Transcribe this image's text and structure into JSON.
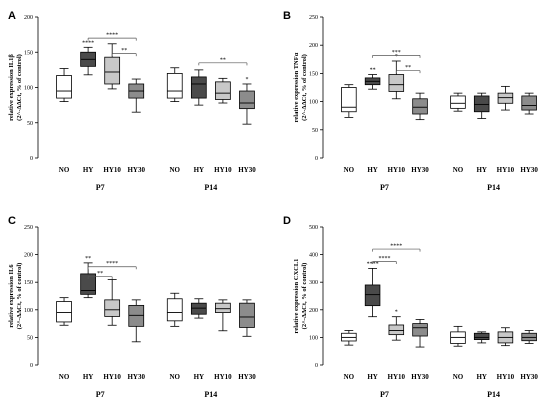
{
  "chart_data": [
    {
      "type": "box",
      "panel_letter": "A",
      "ylabel": "relative expression IL1β",
      "ylabel2": "(2^-ΔΔCt, % of control)",
      "ylim": [
        0,
        200
      ],
      "yticks": [
        0,
        50,
        100,
        150,
        200
      ],
      "categories": [
        "NO",
        "HY",
        "HY10",
        "HY30",
        "NO",
        "HY",
        "HY10",
        "HY30"
      ],
      "groups": [
        "P7",
        "P14"
      ],
      "boxes": [
        {
          "min": 80,
          "q1": 85,
          "median": 95,
          "q3": 117,
          "max": 127,
          "fill": "#ffffff"
        },
        {
          "min": 118,
          "q1": 130,
          "median": 140,
          "q3": 150,
          "max": 157,
          "fill": "#4a4a4a"
        },
        {
          "min": 98,
          "q1": 105,
          "median": 122,
          "q3": 143,
          "max": 162,
          "fill": "#c8c8c8"
        },
        {
          "min": 65,
          "q1": 85,
          "median": 95,
          "q3": 105,
          "max": 112,
          "fill": "#8c8c8c"
        },
        {
          "min": 80,
          "q1": 85,
          "median": 95,
          "q3": 120,
          "max": 128,
          "fill": "#ffffff"
        },
        {
          "min": 75,
          "q1": 85,
          "median": 105,
          "q3": 115,
          "max": 125,
          "fill": "#4a4a4a"
        },
        {
          "min": 78,
          "q1": 83,
          "median": 92,
          "q3": 108,
          "max": 113,
          "fill": "#c8c8c8"
        },
        {
          "min": 48,
          "q1": 70,
          "median": 78,
          "q3": 95,
          "max": 105,
          "fill": "#8c8c8c"
        }
      ],
      "stars": [
        {
          "box": 1,
          "text": "****"
        },
        {
          "box": 7,
          "text": "*"
        }
      ],
      "brackets": [
        {
          "from": 1,
          "to": 3,
          "level": 170,
          "text": "****"
        },
        {
          "from": 2,
          "to": 3,
          "level": 148,
          "text": "**"
        },
        {
          "from": 5,
          "to": 7,
          "level": 135,
          "text": "**"
        }
      ]
    },
    {
      "type": "box",
      "panel_letter": "B",
      "ylabel": "relative expression TNFα",
      "ylabel2": "(2^-ΔΔCt, % of control)",
      "ylim": [
        0,
        250
      ],
      "yticks": [
        0,
        50,
        100,
        150,
        200,
        250
      ],
      "categories": [
        "NO",
        "HY",
        "HY10",
        "HY30",
        "NO",
        "HY",
        "HY10",
        "HY30"
      ],
      "groups": [
        "P7",
        "P14"
      ],
      "boxes": [
        {
          "min": 72,
          "q1": 82,
          "median": 90,
          "q3": 125,
          "max": 130,
          "fill": "#ffffff"
        },
        {
          "min": 122,
          "q1": 130,
          "median": 136,
          "q3": 142,
          "max": 148,
          "fill": "#4a4a4a"
        },
        {
          "min": 105,
          "q1": 118,
          "median": 130,
          "q3": 148,
          "max": 172,
          "fill": "#c8c8c8"
        },
        {
          "min": 68,
          "q1": 78,
          "median": 90,
          "q3": 105,
          "max": 115,
          "fill": "#8c8c8c"
        },
        {
          "min": 83,
          "q1": 88,
          "median": 97,
          "q3": 110,
          "max": 115,
          "fill": "#ffffff"
        },
        {
          "min": 70,
          "q1": 82,
          "median": 95,
          "q3": 110,
          "max": 115,
          "fill": "#4a4a4a"
        },
        {
          "min": 85,
          "q1": 97,
          "median": 107,
          "q3": 115,
          "max": 127,
          "fill": "#c8c8c8"
        },
        {
          "min": 78,
          "q1": 85,
          "median": 93,
          "q3": 110,
          "max": 115,
          "fill": "#8c8c8c"
        }
      ],
      "stars": [
        {
          "box": 1,
          "text": "**"
        },
        {
          "box": 2,
          "text": "*"
        }
      ],
      "brackets": [
        {
          "from": 1,
          "to": 3,
          "level": 182,
          "text": "***"
        },
        {
          "from": 2,
          "to": 3,
          "level": 155,
          "text": "**"
        }
      ]
    },
    {
      "type": "box",
      "panel_letter": "C",
      "ylabel": "relative expression IL6",
      "ylabel2": "(2^-ΔΔCt, % of control)",
      "ylim": [
        0,
        250
      ],
      "yticks": [
        0,
        50,
        100,
        150,
        200,
        250
      ],
      "categories": [
        "NO",
        "HY",
        "HY10",
        "HY30",
        "NO",
        "HY",
        "HY10",
        "HY30"
      ],
      "groups": [
        "P7",
        "P14"
      ],
      "boxes": [
        {
          "min": 72,
          "q1": 78,
          "median": 95,
          "q3": 115,
          "max": 122,
          "fill": "#ffffff"
        },
        {
          "min": 122,
          "q1": 128,
          "median": 135,
          "q3": 165,
          "max": 185,
          "fill": "#4a4a4a"
        },
        {
          "min": 72,
          "q1": 88,
          "median": 100,
          "q3": 118,
          "max": 155,
          "fill": "#c8c8c8"
        },
        {
          "min": 42,
          "q1": 70,
          "median": 90,
          "q3": 108,
          "max": 118,
          "fill": "#8c8c8c"
        },
        {
          "min": 70,
          "q1": 80,
          "median": 95,
          "q3": 120,
          "max": 130,
          "fill": "#ffffff"
        },
        {
          "min": 85,
          "q1": 92,
          "median": 103,
          "q3": 112,
          "max": 120,
          "fill": "#4a4a4a"
        },
        {
          "min": 62,
          "q1": 95,
          "median": 102,
          "q3": 112,
          "max": 118,
          "fill": "#c8c8c8"
        },
        {
          "min": 52,
          "q1": 68,
          "median": 87,
          "q3": 112,
          "max": 118,
          "fill": "#8c8c8c"
        }
      ],
      "stars": [
        {
          "box": 1,
          "text": "**"
        }
      ],
      "brackets": [
        {
          "from": 1,
          "to": 3,
          "level": 178,
          "text": "****"
        },
        {
          "from": 1,
          "to": 2,
          "level": 160,
          "text": "**"
        }
      ]
    },
    {
      "type": "box",
      "panel_letter": "D",
      "ylabel": "relative expression CXCL1",
      "ylabel2": "(2^-ΔΔCt, % of control)",
      "ylim": [
        0,
        500
      ],
      "yticks": [
        0,
        100,
        200,
        300,
        400,
        500
      ],
      "categories": [
        "NO",
        "HY",
        "HY10",
        "HY30",
        "NO",
        "HY",
        "HY10",
        "HY30"
      ],
      "groups": [
        "P7",
        "P14"
      ],
      "boxes": [
        {
          "min": 72,
          "q1": 87,
          "median": 100,
          "q3": 115,
          "max": 125,
          "fill": "#ffffff"
        },
        {
          "min": 175,
          "q1": 215,
          "median": 255,
          "q3": 290,
          "max": 350,
          "fill": "#4a4a4a"
        },
        {
          "min": 90,
          "q1": 110,
          "median": 125,
          "q3": 145,
          "max": 175,
          "fill": "#c8c8c8"
        },
        {
          "min": 65,
          "q1": 105,
          "median": 135,
          "q3": 150,
          "max": 165,
          "fill": "#8c8c8c"
        },
        {
          "min": 68,
          "q1": 78,
          "median": 100,
          "q3": 120,
          "max": 140,
          "fill": "#ffffff"
        },
        {
          "min": 80,
          "q1": 92,
          "median": 100,
          "q3": 115,
          "max": 120,
          "fill": "#4a4a4a"
        },
        {
          "min": 70,
          "q1": 80,
          "median": 100,
          "q3": 120,
          "max": 135,
          "fill": "#c8c8c8"
        },
        {
          "min": 78,
          "q1": 88,
          "median": 100,
          "q3": 115,
          "max": 125,
          "fill": "#8c8c8c"
        }
      ],
      "stars": [
        {
          "box": 1,
          "text": "****"
        },
        {
          "box": 2,
          "text": "*"
        }
      ],
      "brackets": [
        {
          "from": 1,
          "to": 3,
          "level": 420,
          "text": "****"
        },
        {
          "from": 1,
          "to": 2,
          "level": 375,
          "text": "****"
        }
      ]
    }
  ]
}
